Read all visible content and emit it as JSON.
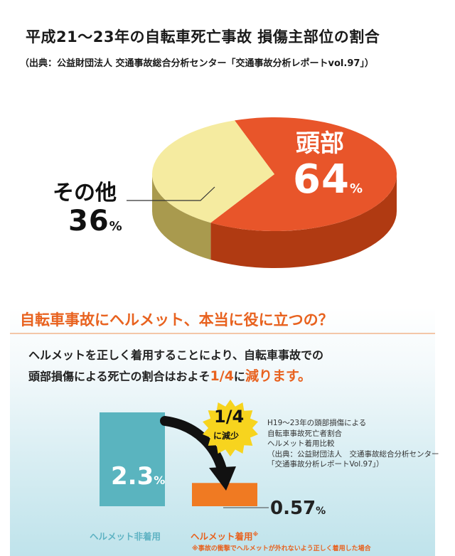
{
  "title": "平成21～23年の自転車死亡事故 損傷主部位の割合",
  "source": "（出典：公益財団法人 交通事故総合分析センター「交通事故分析レポートvol.97」）",
  "colors": {
    "head": "#e8552a",
    "head_side": "#b03a12",
    "other": "#f5eba0",
    "other_side": "#a99a4e",
    "accent": "#e8621f",
    "teal": "#5ab4bf",
    "orange_bar": "#f07a22",
    "burst": "#f7d41e"
  },
  "pie": {
    "head_label": "頭部",
    "head_pct_num": "64",
    "other_label": "その他",
    "other_pct_num": "36",
    "pct_sign": "%"
  },
  "panel": {
    "header": "自転車事故にヘルメット、本当に役に立つの？",
    "message_line1": "ヘルメットを正しく着用することにより、自転車事故での",
    "message_line2_pre": "頭部損傷による死亡の割合はおよそ",
    "message_line2_em1": "1/4",
    "message_line2_mid": "に",
    "message_line2_em2": "減ります。",
    "burst_big": "1/4",
    "burst_small": "に減少",
    "note_lines": [
      "H19～23年の頭部損傷による",
      "自転車事故死亡者割合",
      "ヘルメット着用比較",
      "（出典：公益財団法人　交通事故総合分析センター",
      "「交通事故分析レポートVol.97」）"
    ],
    "value_nohelmet_num": "2.3",
    "value_helmet_num": "0.57",
    "pct_sign": "%",
    "cat_nohelmet": "ヘルメット非着用",
    "cat_helmet": "ヘルメット着用",
    "cat_helmet_mark": "※",
    "footnote": "※事故の衝撃でヘルメットが外れないよう正しく着用した場合"
  },
  "chart_data": [
    {
      "type": "pie",
      "title": "平成21～23年の自転車死亡事故 損傷主部位の割合",
      "categories": [
        "頭部",
        "その他"
      ],
      "values": [
        64,
        36
      ],
      "unit": "%"
    },
    {
      "type": "bar",
      "title": "自転車事故にヘルメット、本当に役に立つの？",
      "categories": [
        "ヘルメット非着用",
        "ヘルメット着用"
      ],
      "values": [
        2.3,
        0.57
      ],
      "unit": "%"
    }
  ]
}
